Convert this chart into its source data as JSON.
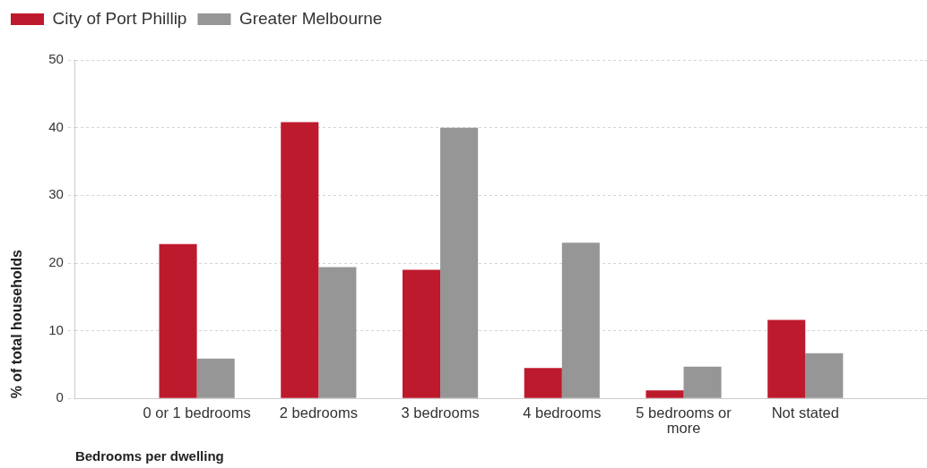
{
  "chart_data": {
    "type": "bar",
    "xlabel": "Bedrooms per dwelling",
    "ylabel": "% of total households",
    "categories": [
      "0 or 1 bedrooms",
      "2 bedrooms",
      "3 bedrooms",
      "4 bedrooms",
      "5 bedrooms or more",
      "Not stated"
    ],
    "series": [
      {
        "name": "City of Port Phillip",
        "color": "#be1a2d",
        "values": [
          22.8,
          40.8,
          19.0,
          4.5,
          1.2,
          11.6
        ]
      },
      {
        "name": "Greater Melbourne",
        "color": "#969696",
        "values": [
          5.9,
          19.4,
          40.0,
          23.0,
          4.7,
          6.7
        ]
      }
    ],
    "ylim": [
      0,
      50
    ],
    "yticks": [
      0,
      10,
      20,
      30,
      40,
      50
    ],
    "grid": "y",
    "legend": "top left"
  }
}
